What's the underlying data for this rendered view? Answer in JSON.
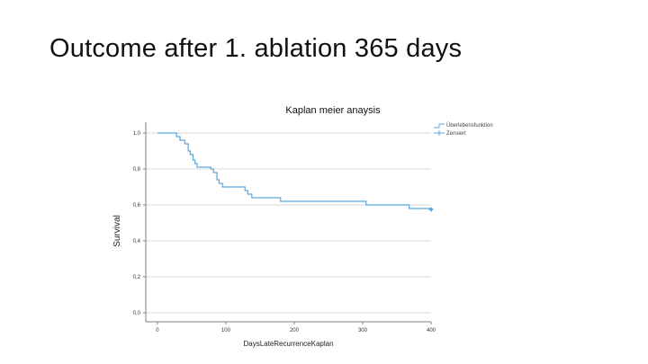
{
  "slide": {
    "title": "Outcome after 1. ablation 365 days"
  },
  "colors": {
    "line": "#5aa7de",
    "grid": "#d9d9d9",
    "axis": "#7f7f7f"
  },
  "chart_data": {
    "type": "line",
    "title": "Kaplan meier anaysis",
    "xlabel": "DaysLateRecurrenceKaplan",
    "ylabel": "Survival",
    "xlim": [
      -17,
      400
    ],
    "ylim": [
      -0.05,
      1.06
    ],
    "xticks": [
      0,
      100,
      200,
      300,
      400
    ],
    "xtick_labels": [
      "0",
      "100",
      "200",
      "300",
      "400"
    ],
    "yticks": [
      0,
      0.2,
      0.4,
      0.6,
      0.8,
      1.0
    ],
    "ytick_labels": [
      "0,0",
      "0,2",
      "0,4",
      "0,6",
      "0,8",
      "1,0"
    ],
    "grid": "horizontal",
    "legend_position": "top-right",
    "series": [
      {
        "name": "Überlebensfunktion",
        "step": true,
        "x": [
          0,
          28,
          33,
          40,
          45,
          48,
          52,
          55,
          58,
          78,
          82,
          87,
          90,
          95,
          128,
          132,
          138,
          180,
          305,
          368,
          400
        ],
        "y": [
          1.0,
          0.98,
          0.96,
          0.94,
          0.9,
          0.88,
          0.85,
          0.83,
          0.81,
          0.8,
          0.78,
          0.74,
          0.72,
          0.7,
          0.68,
          0.66,
          0.64,
          0.62,
          0.6,
          0.58,
          0.575
        ]
      },
      {
        "name": "Zensiert",
        "type": "scatter",
        "marker": "plus",
        "x": [
          400
        ],
        "y": [
          0.575
        ]
      }
    ]
  }
}
